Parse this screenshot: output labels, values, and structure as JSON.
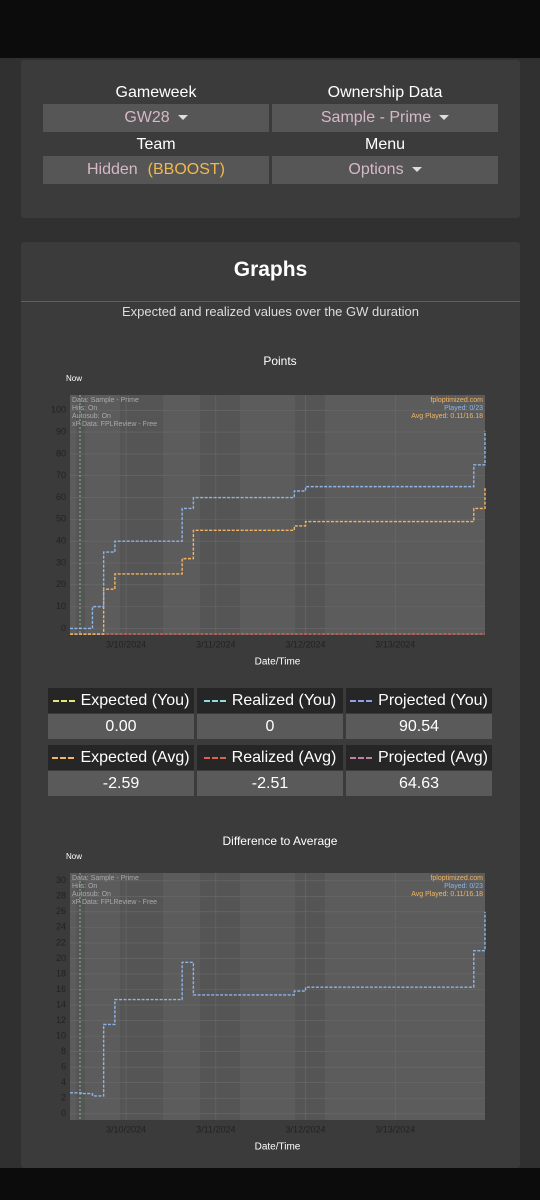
{
  "controls": {
    "gameweek_label": "Gameweek",
    "gameweek": "GW28",
    "ownership_label": "Ownership Data",
    "ownership": "Sample - Prime",
    "team_label": "Team",
    "team": "Hidden",
    "chip": "(BBOOST)",
    "menu_label": "Menu",
    "menu": "Options"
  },
  "section": {
    "title": "Graphs",
    "subtitle": "Expected and realized values over the GW duration"
  },
  "summary": [
    {
      "label": "Expected (You)",
      "value": "0.00",
      "color": "#e6e67a"
    },
    {
      "label": "Realized (You)",
      "value": "0",
      "color": "#8fdcdc"
    },
    {
      "label": "Projected (You)",
      "value": "90.54",
      "color": "#8ea0e6"
    },
    {
      "label": "Expected (Avg)",
      "value": "-2.59",
      "color": "#f3b562"
    },
    {
      "label": "Realized (Avg)",
      "value": "-2.51",
      "color": "#e0604f"
    },
    {
      "label": "Projected (Avg)",
      "value": "64.63",
      "color": "#c47fa4"
    }
  ],
  "chart_data": [
    {
      "type": "line",
      "title": "Points",
      "x_label": "Date/Time",
      "marker_label": "Now",
      "notes_left": [
        "Data: Sample - Prime",
        "Hits: On",
        "Autosub: On",
        "xP Data: FPLReview - Free"
      ],
      "notes_right": [
        "fploptimized.com",
        "Played: 0/23",
        "Avg Played: 0.11/16.18"
      ],
      "categories": [
        null,
        null,
        null,
        null,
        null,
        "3/10/2024",
        null,
        null,
        null,
        null,
        null,
        null,
        null,
        "3/11/2024",
        null,
        null,
        null,
        null,
        null,
        null,
        null,
        "3/12/2024",
        null,
        null,
        null,
        null,
        null,
        null,
        null,
        "3/13/2024",
        null,
        null,
        null,
        null,
        null,
        null,
        null,
        null
      ],
      "ylim": [
        -3,
        107
      ],
      "yticks": [
        0,
        10,
        20,
        30,
        40,
        50,
        60,
        70,
        80,
        90,
        100
      ],
      "grid": true,
      "series": [
        {
          "color": "#e0604f",
          "values": [
            -2.51,
            -2.51,
            -2.51,
            -2.51,
            -2.51,
            -2.51,
            -2.51,
            -2.51,
            -2.51,
            -2.51,
            -2.51,
            -2.51,
            -2.51,
            -2.51,
            -2.51,
            -2.51,
            -2.51,
            -2.51,
            -2.51,
            -2.51,
            -2.51,
            -2.51,
            -2.51,
            -2.51,
            -2.51,
            -2.51,
            -2.51,
            -2.51,
            -2.51,
            -2.51,
            -2.51,
            -2.51,
            -2.51,
            -2.51,
            -2.51,
            -2.51,
            -2.51,
            -2.51
          ]
        },
        {
          "color": "#f3b562",
          "values": [
            -2.6,
            -2.6,
            -2.6,
            18,
            25,
            25,
            25,
            25,
            25,
            25,
            32,
            45,
            45,
            45,
            45,
            45,
            45,
            45,
            45,
            45,
            47,
            49,
            49,
            49,
            49,
            49,
            49,
            49,
            49,
            49,
            49,
            49,
            49,
            49,
            49,
            49,
            55,
            64.63
          ]
        },
        {
          "color": "#8fb4e6",
          "values": [
            0,
            0,
            10,
            35,
            40,
            40,
            40,
            40,
            40,
            40,
            55,
            60,
            60,
            60,
            60,
            60,
            60,
            60,
            60,
            60,
            63,
            65,
            65,
            65,
            65,
            65,
            65,
            65,
            65,
            65,
            65,
            65,
            65,
            65,
            65,
            65,
            75,
            90.54
          ]
        }
      ]
    },
    {
      "type": "line",
      "title": "Difference to Average",
      "x_label": "Date/Time",
      "marker_label": "Now",
      "notes_left": [
        "Data: Sample - Prime",
        "Hits: On",
        "Autosub: On",
        "xP Data: FPLReview - Free"
      ],
      "notes_right": [
        "fploptimized.com",
        "Played: 0/23",
        "Avg Played: 0.11/16.18"
      ],
      "categories": [
        null,
        null,
        null,
        null,
        null,
        "3/10/2024",
        null,
        null,
        null,
        null,
        null,
        null,
        null,
        "3/11/2024",
        null,
        null,
        null,
        null,
        null,
        null,
        null,
        "3/12/2024",
        null,
        null,
        null,
        null,
        null,
        null,
        null,
        "3/13/2024",
        null,
        null,
        null,
        null,
        null,
        null,
        null,
        null
      ],
      "ylim": [
        -0.8,
        31
      ],
      "yticks": [
        0,
        2,
        4,
        6,
        8,
        10,
        12,
        14,
        16,
        18,
        20,
        22,
        24,
        26,
        28,
        30
      ],
      "grid": true,
      "series": [
        {
          "color": "#8fb4e6",
          "values": [
            2.7,
            2.6,
            2.3,
            11.5,
            14.7,
            14.7,
            14.7,
            14.7,
            14.7,
            14.7,
            19.5,
            15.3,
            15.3,
            15.3,
            15.3,
            15.3,
            15.3,
            15.3,
            15.3,
            15.3,
            15.8,
            16.3,
            16.3,
            16.3,
            16.3,
            16.3,
            16.3,
            16.3,
            16.3,
            16.3,
            16.3,
            16.3,
            16.3,
            16.3,
            16.3,
            16.3,
            21,
            26
          ]
        }
      ]
    }
  ]
}
